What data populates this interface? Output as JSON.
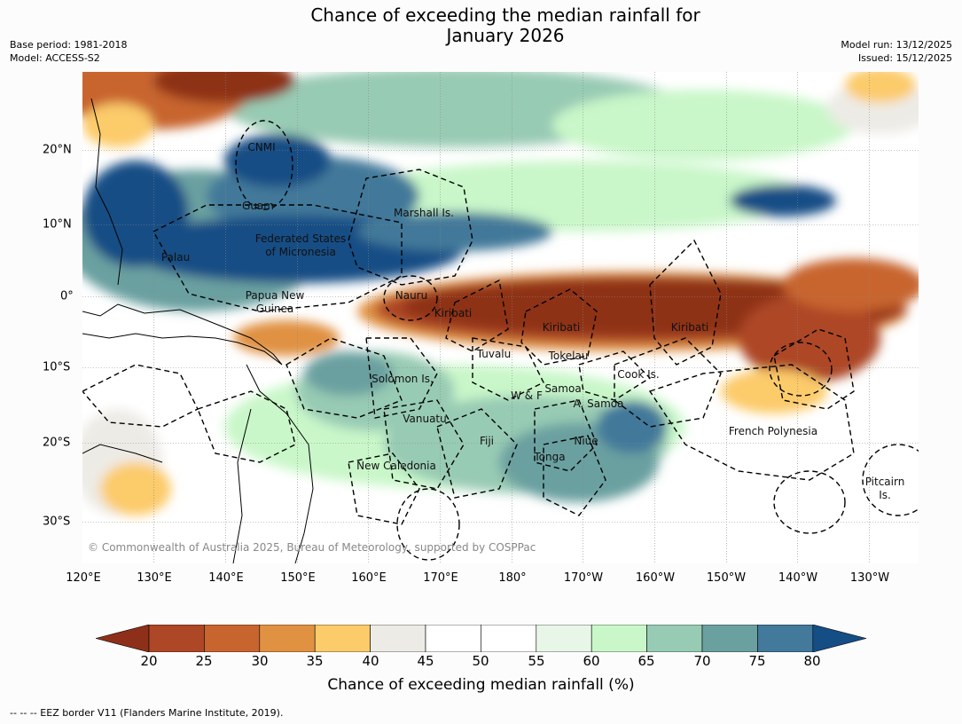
{
  "header": {
    "title_line1": "Chance of exceeding the median rainfall for",
    "title_line2": "January 2026",
    "base_period": "Base period: 1981-2018",
    "model": "Model: ACCESS-S2",
    "model_run": "Model run: 13/12/2025",
    "issued": "Issued: 15/12/2025"
  },
  "map": {
    "lon_ticks": [
      "120°E",
      "130°E",
      "140°E",
      "150°E",
      "160°E",
      "170°E",
      "180°",
      "170°W",
      "160°W",
      "150°W",
      "140°W",
      "130°W"
    ],
    "lat_ticks": [
      "20°N",
      "10°N",
      "0°",
      "10°S",
      "20°S",
      "30°S"
    ],
    "labels": {
      "cnmi": "CNMI",
      "guam": "Guam",
      "marshall": "Marshall Is.",
      "fsm1": "Federated States",
      "fsm2": "of Micronesia",
      "palau": "Palau",
      "png1": "Papua New",
      "png2": "Guinea",
      "nauru": "Nauru",
      "kiribati_w": "Kiribati",
      "kiribati_c": "Kiribati",
      "kiribati_e": "Kiribati",
      "tuvalu": "Tuvalu",
      "tokelau": "Tokelau",
      "cook": "Cook Is.",
      "solomon": "Solomon Is.",
      "wf": "W & F",
      "samoa": "Samoa",
      "asamoa": "A. Samoa",
      "vanuatu": "Vanuatu",
      "fiji": "Fiji",
      "niue": "Niue",
      "tonga": "Tonga",
      "frenchpoly": "French Polynesia",
      "newcal": "New Caledonia",
      "pitcairn1": "Pitcairn",
      "pitcairn2": "Is."
    },
    "copyright": "© Commonwealth of Australia 2025, Bureau of Meteorology, supported by COSPPac"
  },
  "colorbar": {
    "ticks": [
      "20",
      "25",
      "30",
      "35",
      "40",
      "45",
      "50",
      "55",
      "60",
      "65",
      "70",
      "75",
      "80"
    ],
    "title": "Chance of exceeding median rainfall (%)",
    "colors": [
      "#8e3019",
      "#ad4725",
      "#c8652f",
      "#e09142",
      "#fccb6a",
      "#edebe6",
      "#ffffff",
      "#ffffff",
      "#e8f6e8",
      "#c9f7c9",
      "#98cbb4",
      "#6aa0a0",
      "#43799a",
      "#154d85"
    ]
  },
  "footer": {
    "legend": "--  --  -- EEZ border V11 (Flanders Marine Institute, 2019)."
  }
}
